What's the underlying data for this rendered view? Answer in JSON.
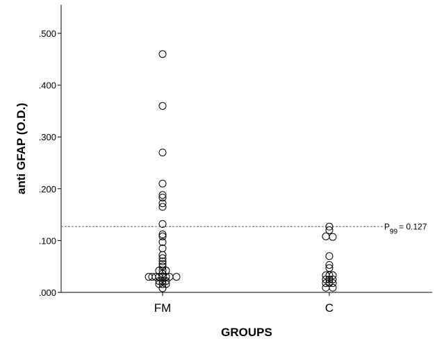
{
  "chart_data": {
    "type": "scatter",
    "xlabel": "GROUPS",
    "ylabel": "anti GFAP (O.D.)",
    "categories": [
      "FM",
      "C"
    ],
    "ylim": [
      0,
      0.55
    ],
    "yticks": [
      ".000",
      ".100",
      ".200",
      ".300",
      ".400",
      ".500"
    ],
    "grid": false,
    "reference_line": {
      "value": 0.127,
      "label_main": "P",
      "label_sub": "99",
      "label_rest": "= 0.127"
    },
    "series": [
      {
        "group": "FM",
        "points": [
          {
            "offset": 0,
            "y": 0.46
          },
          {
            "offset": 0,
            "y": 0.36
          },
          {
            "offset": 0,
            "y": 0.27
          },
          {
            "offset": 0,
            "y": 0.21
          },
          {
            "offset": 0,
            "y": 0.188
          },
          {
            "offset": 0,
            "y": 0.183
          },
          {
            "offset": 0,
            "y": 0.172
          },
          {
            "offset": 0,
            "y": 0.165
          },
          {
            "offset": 0,
            "y": 0.132
          },
          {
            "offset": 0,
            "y": 0.112
          },
          {
            "offset": 0,
            "y": 0.108
          },
          {
            "offset": 0,
            "y": 0.097
          },
          {
            "offset": 0,
            "y": 0.085
          },
          {
            "offset": 0,
            "y": 0.072
          },
          {
            "offset": 0,
            "y": 0.066
          },
          {
            "offset": 0,
            "y": 0.06
          },
          {
            "offset": 0,
            "y": 0.055
          },
          {
            "offset": 0,
            "y": 0.05
          },
          {
            "offset": -1,
            "y": 0.042
          },
          {
            "offset": 0,
            "y": 0.042
          },
          {
            "offset": 1,
            "y": 0.042
          },
          {
            "offset": 0,
            "y": 0.036
          },
          {
            "offset": -4,
            "y": 0.03
          },
          {
            "offset": -3,
            "y": 0.03
          },
          {
            "offset": -2,
            "y": 0.03
          },
          {
            "offset": -1,
            "y": 0.03
          },
          {
            "offset": 0,
            "y": 0.03
          },
          {
            "offset": 1,
            "y": 0.03
          },
          {
            "offset": 2,
            "y": 0.03
          },
          {
            "offset": 4,
            "y": 0.03
          },
          {
            "offset": -1,
            "y": 0.022
          },
          {
            "offset": 0,
            "y": 0.022
          },
          {
            "offset": 1,
            "y": 0.022
          },
          {
            "offset": -1,
            "y": 0.016
          },
          {
            "offset": 0,
            "y": 0.016
          },
          {
            "offset": 1,
            "y": 0.016
          },
          {
            "offset": 0,
            "y": 0.008
          }
        ]
      },
      {
        "group": "C",
        "points": [
          {
            "offset": 0,
            "y": 0.127
          },
          {
            "offset": 0,
            "y": 0.12
          },
          {
            "offset": -1,
            "y": 0.108
          },
          {
            "offset": 1,
            "y": 0.107
          },
          {
            "offset": 0,
            "y": 0.07
          },
          {
            "offset": 0,
            "y": 0.053
          },
          {
            "offset": 0,
            "y": 0.047
          },
          {
            "offset": -1,
            "y": 0.033
          },
          {
            "offset": 0,
            "y": 0.033
          },
          {
            "offset": 1,
            "y": 0.033
          },
          {
            "offset": -1,
            "y": 0.025
          },
          {
            "offset": 0,
            "y": 0.025
          },
          {
            "offset": 1,
            "y": 0.025
          },
          {
            "offset": -1,
            "y": 0.018
          },
          {
            "offset": 0,
            "y": 0.018
          },
          {
            "offset": 1,
            "y": 0.018
          },
          {
            "offset": -1,
            "y": 0.009
          },
          {
            "offset": 1,
            "y": 0.009
          }
        ]
      }
    ]
  }
}
